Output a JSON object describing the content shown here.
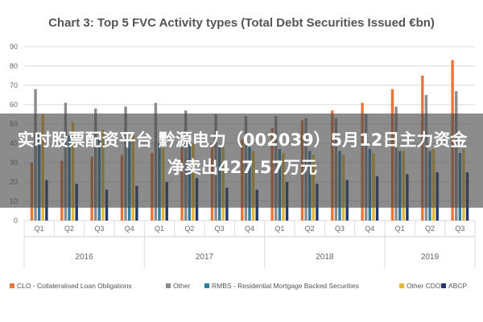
{
  "chart_data": {
    "type": "bar",
    "title": "Chart 3: Top 5 FVC Activity types (Total Debt Securities Issued €bn)",
    "xlabel": "",
    "ylabel": "",
    "ylim": [
      0,
      90
    ],
    "yticks": [
      0,
      10,
      20,
      30,
      40,
      50,
      60,
      70,
      80,
      90
    ],
    "grid": true,
    "legend_position": "bottom",
    "categories": [
      "Q1",
      "Q2",
      "Q3",
      "Q4",
      "Q1",
      "Q2",
      "Q3",
      "Q4",
      "Q1",
      "Q2",
      "Q3",
      "Q4",
      "Q1",
      "Q2",
      "Q3"
    ],
    "year_groups": [
      {
        "label": "2016",
        "quarters": 4
      },
      {
        "label": "2017",
        "quarters": 4
      },
      {
        "label": "2018",
        "quarters": 4
      },
      {
        "label": "2019",
        "quarters": 3
      }
    ],
    "series": [
      {
        "name": "CLO - Collateralised Loan Obligations",
        "color": "#e8763a",
        "values": [
          30,
          31,
          33,
          34,
          35,
          38,
          40,
          42,
          48,
          52,
          57,
          61,
          68,
          75,
          83
        ]
      },
      {
        "name": "Other",
        "color": "#8c8c8c",
        "values": [
          68,
          61,
          58,
          59,
          61,
          57,
          55,
          54,
          54,
          53,
          53,
          55,
          59,
          65,
          67
        ]
      },
      {
        "name": "RMBS - Residential Mortgage Backed Securities",
        "color": "#2e7da6",
        "values": [
          45,
          44,
          42,
          41,
          41,
          40,
          39,
          38,
          37,
          36,
          36,
          37,
          36,
          36,
          35
        ]
      },
      {
        "name": "Other CDO",
        "color": "#e6b832",
        "values": [
          55,
          51,
          47,
          44,
          42,
          40,
          38,
          36,
          35,
          34,
          34,
          35,
          36,
          37,
          37
        ]
      },
      {
        "name": "ABCP",
        "color": "#203a6e",
        "values": [
          21,
          19,
          16,
          18,
          20,
          22,
          17,
          16,
          20,
          19,
          21,
          23,
          24,
          25,
          25
        ]
      }
    ]
  },
  "overlay": {
    "headline": "实时股票配资平台 黔源电力（002039）5月12日主力资金净卖出427.57万元"
  }
}
